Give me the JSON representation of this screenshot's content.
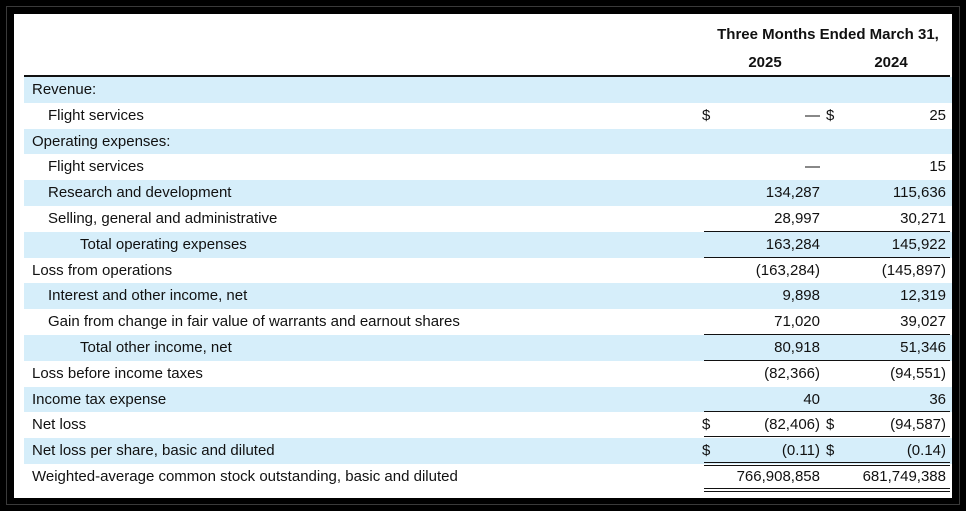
{
  "header": {
    "period": "Three Months Ended March 31,",
    "year_1": "2025",
    "year_2": "2024"
  },
  "rows": [
    {
      "label": "Revenue:",
      "c1": "",
      "c2": "",
      "d1": "",
      "d2": ""
    },
    {
      "label": "Flight services",
      "c1": "—",
      "c2": "25",
      "d1": "$",
      "d2": "$"
    },
    {
      "label": "Operating expenses:",
      "c1": "",
      "c2": "",
      "d1": "",
      "d2": ""
    },
    {
      "label": "Flight services",
      "c1": "—",
      "c2": "15",
      "d1": "",
      "d2": ""
    },
    {
      "label": "Research and development",
      "c1": "134,287",
      "c2": "115,636",
      "d1": "",
      "d2": ""
    },
    {
      "label": "Selling, general and administrative",
      "c1": "28,997",
      "c2": "30,271",
      "d1": "",
      "d2": ""
    },
    {
      "label": "Total operating expenses",
      "c1": "163,284",
      "c2": "145,922",
      "d1": "",
      "d2": ""
    },
    {
      "label": "Loss from operations",
      "c1": "(163,284)",
      "c2": "(145,897)",
      "d1": "",
      "d2": ""
    },
    {
      "label": "Interest and other income, net",
      "c1": "9,898",
      "c2": "12,319",
      "d1": "",
      "d2": ""
    },
    {
      "label": "Gain  from change in fair value of warrants and earnout shares",
      "c1": "71,020",
      "c2": "39,027",
      "d1": "",
      "d2": ""
    },
    {
      "label": "Total other income, net",
      "c1": "80,918",
      "c2": "51,346",
      "d1": "",
      "d2": ""
    },
    {
      "label": "Loss before income taxes",
      "c1": "(82,366)",
      "c2": "(94,551)",
      "d1": "",
      "d2": ""
    },
    {
      "label": "Income tax expense",
      "c1": "40",
      "c2": "36",
      "d1": "",
      "d2": ""
    },
    {
      "label": "Net loss",
      "c1": "(82,406)",
      "c2": "(94,587)",
      "d1": "$",
      "d2": "$"
    },
    {
      "label": "Net loss per share, basic and diluted",
      "c1": "(0.11)",
      "c2": "(0.14)",
      "d1": "$",
      "d2": "$"
    },
    {
      "label": "Weighted-average common stock outstanding, basic and diluted",
      "c1": "766,908,858",
      "c2": "681,749,388",
      "d1": "",
      "d2": ""
    }
  ]
}
